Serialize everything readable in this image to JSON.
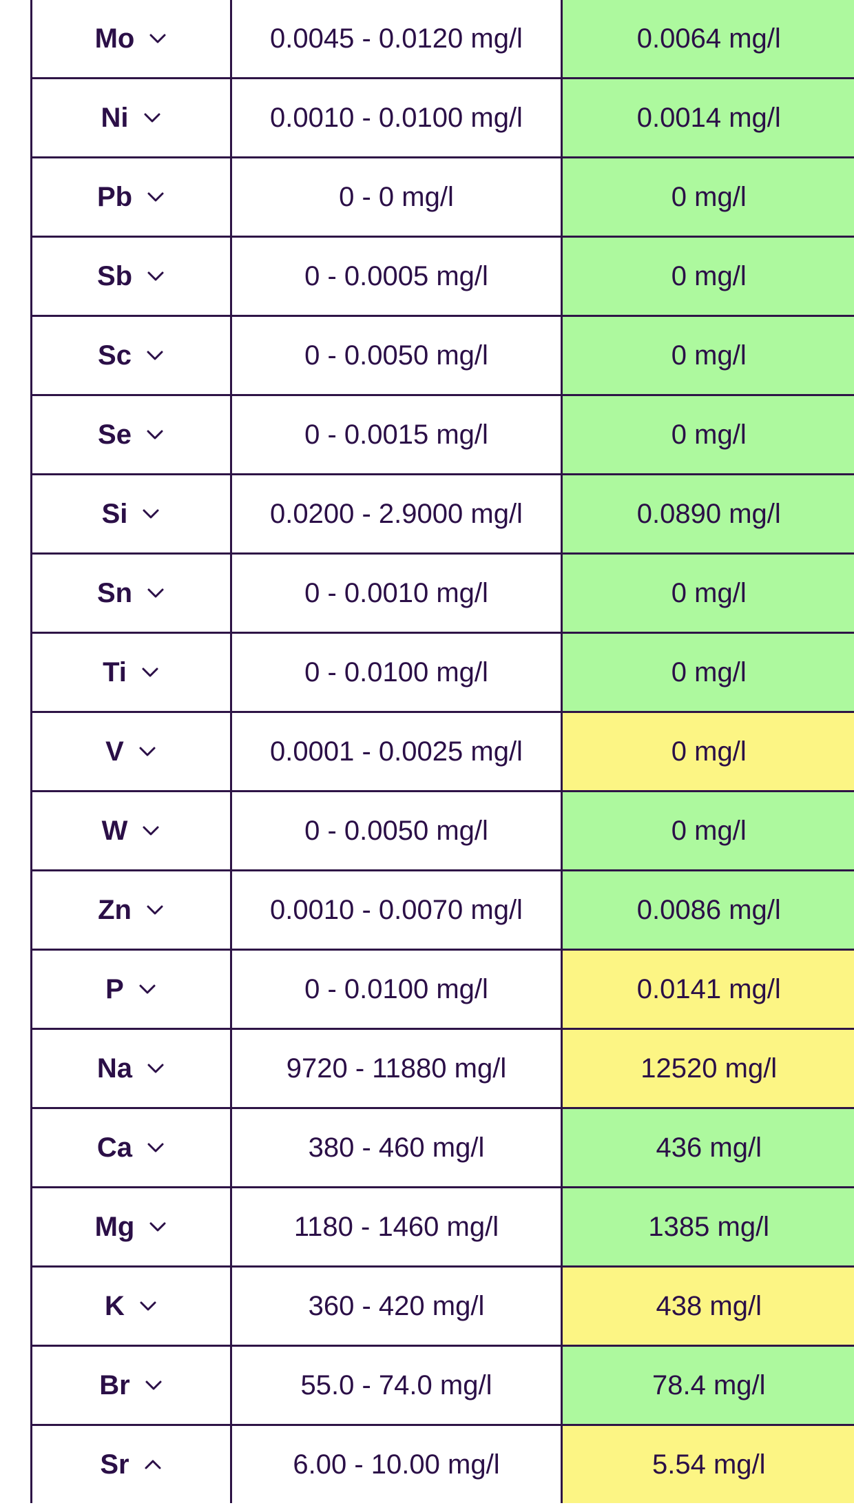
{
  "rows": [
    {
      "element": "Mo",
      "range": "0.0045 - 0.0120 mg/l",
      "value": "0.0064 mg/l",
      "status": "green",
      "expanded": false
    },
    {
      "element": "Ni",
      "range": "0.0010 - 0.0100 mg/l",
      "value": "0.0014 mg/l",
      "status": "green",
      "expanded": false
    },
    {
      "element": "Pb",
      "range": "0 - 0 mg/l",
      "value": "0 mg/l",
      "status": "green",
      "expanded": false
    },
    {
      "element": "Sb",
      "range": "0 - 0.0005 mg/l",
      "value": "0 mg/l",
      "status": "green",
      "expanded": false
    },
    {
      "element": "Sc",
      "range": "0 - 0.0050 mg/l",
      "value": "0 mg/l",
      "status": "green",
      "expanded": false
    },
    {
      "element": "Se",
      "range": "0 - 0.0015 mg/l",
      "value": "0 mg/l",
      "status": "green",
      "expanded": false
    },
    {
      "element": "Si",
      "range": "0.0200 - 2.9000 mg/l",
      "value": "0.0890 mg/l",
      "status": "green",
      "expanded": false
    },
    {
      "element": "Sn",
      "range": "0 - 0.0010 mg/l",
      "value": "0 mg/l",
      "status": "green",
      "expanded": false
    },
    {
      "element": "Ti",
      "range": "0 - 0.0100 mg/l",
      "value": "0 mg/l",
      "status": "green",
      "expanded": false
    },
    {
      "element": "V",
      "range": "0.0001 - 0.0025 mg/l",
      "value": "0 mg/l",
      "status": "yellow",
      "expanded": false
    },
    {
      "element": "W",
      "range": "0 - 0.0050 mg/l",
      "value": "0 mg/l",
      "status": "green",
      "expanded": false
    },
    {
      "element": "Zn",
      "range": "0.0010 - 0.0070 mg/l",
      "value": "0.0086 mg/l",
      "status": "green",
      "expanded": false
    },
    {
      "element": "P",
      "range": "0 - 0.0100 mg/l",
      "value": "0.0141 mg/l",
      "status": "yellow",
      "expanded": false
    },
    {
      "element": "Na",
      "range": "9720 - 11880 mg/l",
      "value": "12520 mg/l",
      "status": "yellow",
      "expanded": false
    },
    {
      "element": "Ca",
      "range": "380 - 460 mg/l",
      "value": "436 mg/l",
      "status": "green",
      "expanded": false
    },
    {
      "element": "Mg",
      "range": "1180 - 1460 mg/l",
      "value": "1385 mg/l",
      "status": "green",
      "expanded": false
    },
    {
      "element": "K",
      "range": "360 - 420 mg/l",
      "value": "438 mg/l",
      "status": "yellow",
      "expanded": false
    },
    {
      "element": "Br",
      "range": "55.0 - 74.0 mg/l",
      "value": "78.4 mg/l",
      "status": "green",
      "expanded": false
    },
    {
      "element": "Sr",
      "range": "6.00 - 10.00 mg/l",
      "value": "5.54 mg/l",
      "status": "yellow",
      "expanded": true
    }
  ],
  "colors": {
    "green": "#adf99e",
    "yellow": "#fcf584",
    "text": "#2b0f47",
    "border": "#2e1446"
  },
  "icons": {
    "collapsed": "chevron-down-icon",
    "expanded": "chevron-up-icon"
  }
}
